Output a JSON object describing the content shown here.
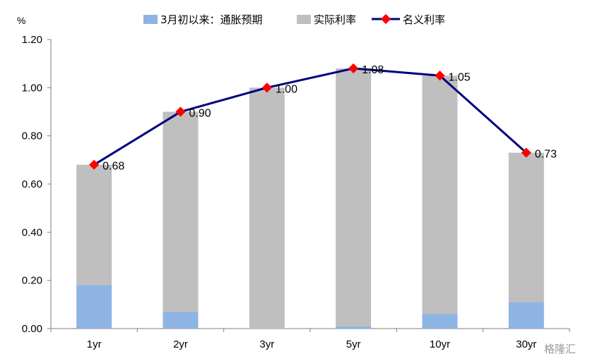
{
  "chart_data": {
    "type": "bar",
    "stacked": true,
    "ylabel": "%",
    "ylim": [
      0,
      1.2
    ],
    "yticks": [
      "0.00",
      "0.20",
      "0.40",
      "0.60",
      "0.80",
      "1.00",
      "1.20"
    ],
    "grid": false,
    "legend_position": "top",
    "categories": [
      "1yr",
      "2yr",
      "3yr",
      "5yr",
      "10yr",
      "30yr"
    ],
    "series": [
      {
        "name": "3月初以来：通胀预期",
        "type": "bar",
        "color": "#8EB4E3",
        "values": [
          0.18,
          0.07,
          0.0,
          0.01,
          0.06,
          0.11
        ]
      },
      {
        "name": "实际利率",
        "type": "bar",
        "color": "#BFBFBF",
        "values": [
          0.5,
          0.83,
          1.0,
          1.07,
          0.99,
          0.62
        ]
      },
      {
        "name": "名义利率",
        "type": "line",
        "color": "#000080",
        "marker_color": "#FF0000",
        "values": [
          0.68,
          0.9,
          1.0,
          1.08,
          1.05,
          0.73
        ],
        "labels": [
          "0.68",
          "0.90",
          "1.00",
          "1.08",
          "1.05",
          "0.73"
        ]
      }
    ]
  },
  "watermark": "格隆汇"
}
